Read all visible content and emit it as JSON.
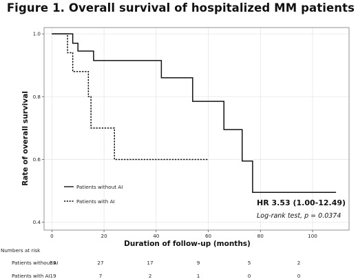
{
  "figure": {
    "title": "Figure 1. Overall survival of hospitalized MM patients"
  },
  "chart_data": {
    "type": "line",
    "title": "Figure 1. Overall survival of hospitalized MM patients",
    "xlabel": "Duration of follow-up (months)",
    "ylabel": "Rate of overall survival",
    "xlim": [
      -3,
      114
    ],
    "ylim": [
      0.375,
      1.02
    ],
    "x_ticks": [
      0,
      20,
      40,
      60,
      80,
      100
    ],
    "y_ticks": [
      0.4,
      0.6,
      0.8,
      1.0
    ],
    "y_tick_labels": [
      "0.4",
      "0.6",
      "0.8",
      "1.0"
    ],
    "grid": true,
    "legend_position": "lower-left",
    "series": [
      {
        "name": "Patients without AI",
        "style": "solid",
        "color": "#111111",
        "steps": [
          [
            0,
            1.0
          ],
          [
            8,
            0.97
          ],
          [
            10,
            0.945
          ],
          [
            16,
            0.915
          ],
          [
            42,
            0.86
          ],
          [
            54,
            0.785
          ],
          [
            66,
            0.695
          ],
          [
            73,
            0.595
          ],
          [
            77,
            0.495
          ],
          [
            109,
            0.495
          ]
        ]
      },
      {
        "name": "Patients with AI",
        "style": "dashed",
        "color": "#111111",
        "steps": [
          [
            0,
            1.0
          ],
          [
            6,
            0.94
          ],
          [
            8,
            0.88
          ],
          [
            14,
            0.8
          ],
          [
            15,
            0.7
          ],
          [
            24,
            0.6
          ],
          [
            60,
            0.6
          ]
        ]
      }
    ],
    "annotations": {
      "hr": "HR 3.53 (1.00-12.49)",
      "logrank": "Log-rank test, p = 0.0374"
    },
    "risk_table": {
      "header": "Numbers at risk",
      "rows": [
        {
          "label": "Patients without AI",
          "values": [
            "39",
            "27",
            "17",
            "9",
            "5",
            "2"
          ]
        },
        {
          "label": "Patients with AI",
          "values": [
            "19",
            "7",
            "2",
            "1",
            "0",
            "0"
          ]
        }
      ]
    }
  }
}
